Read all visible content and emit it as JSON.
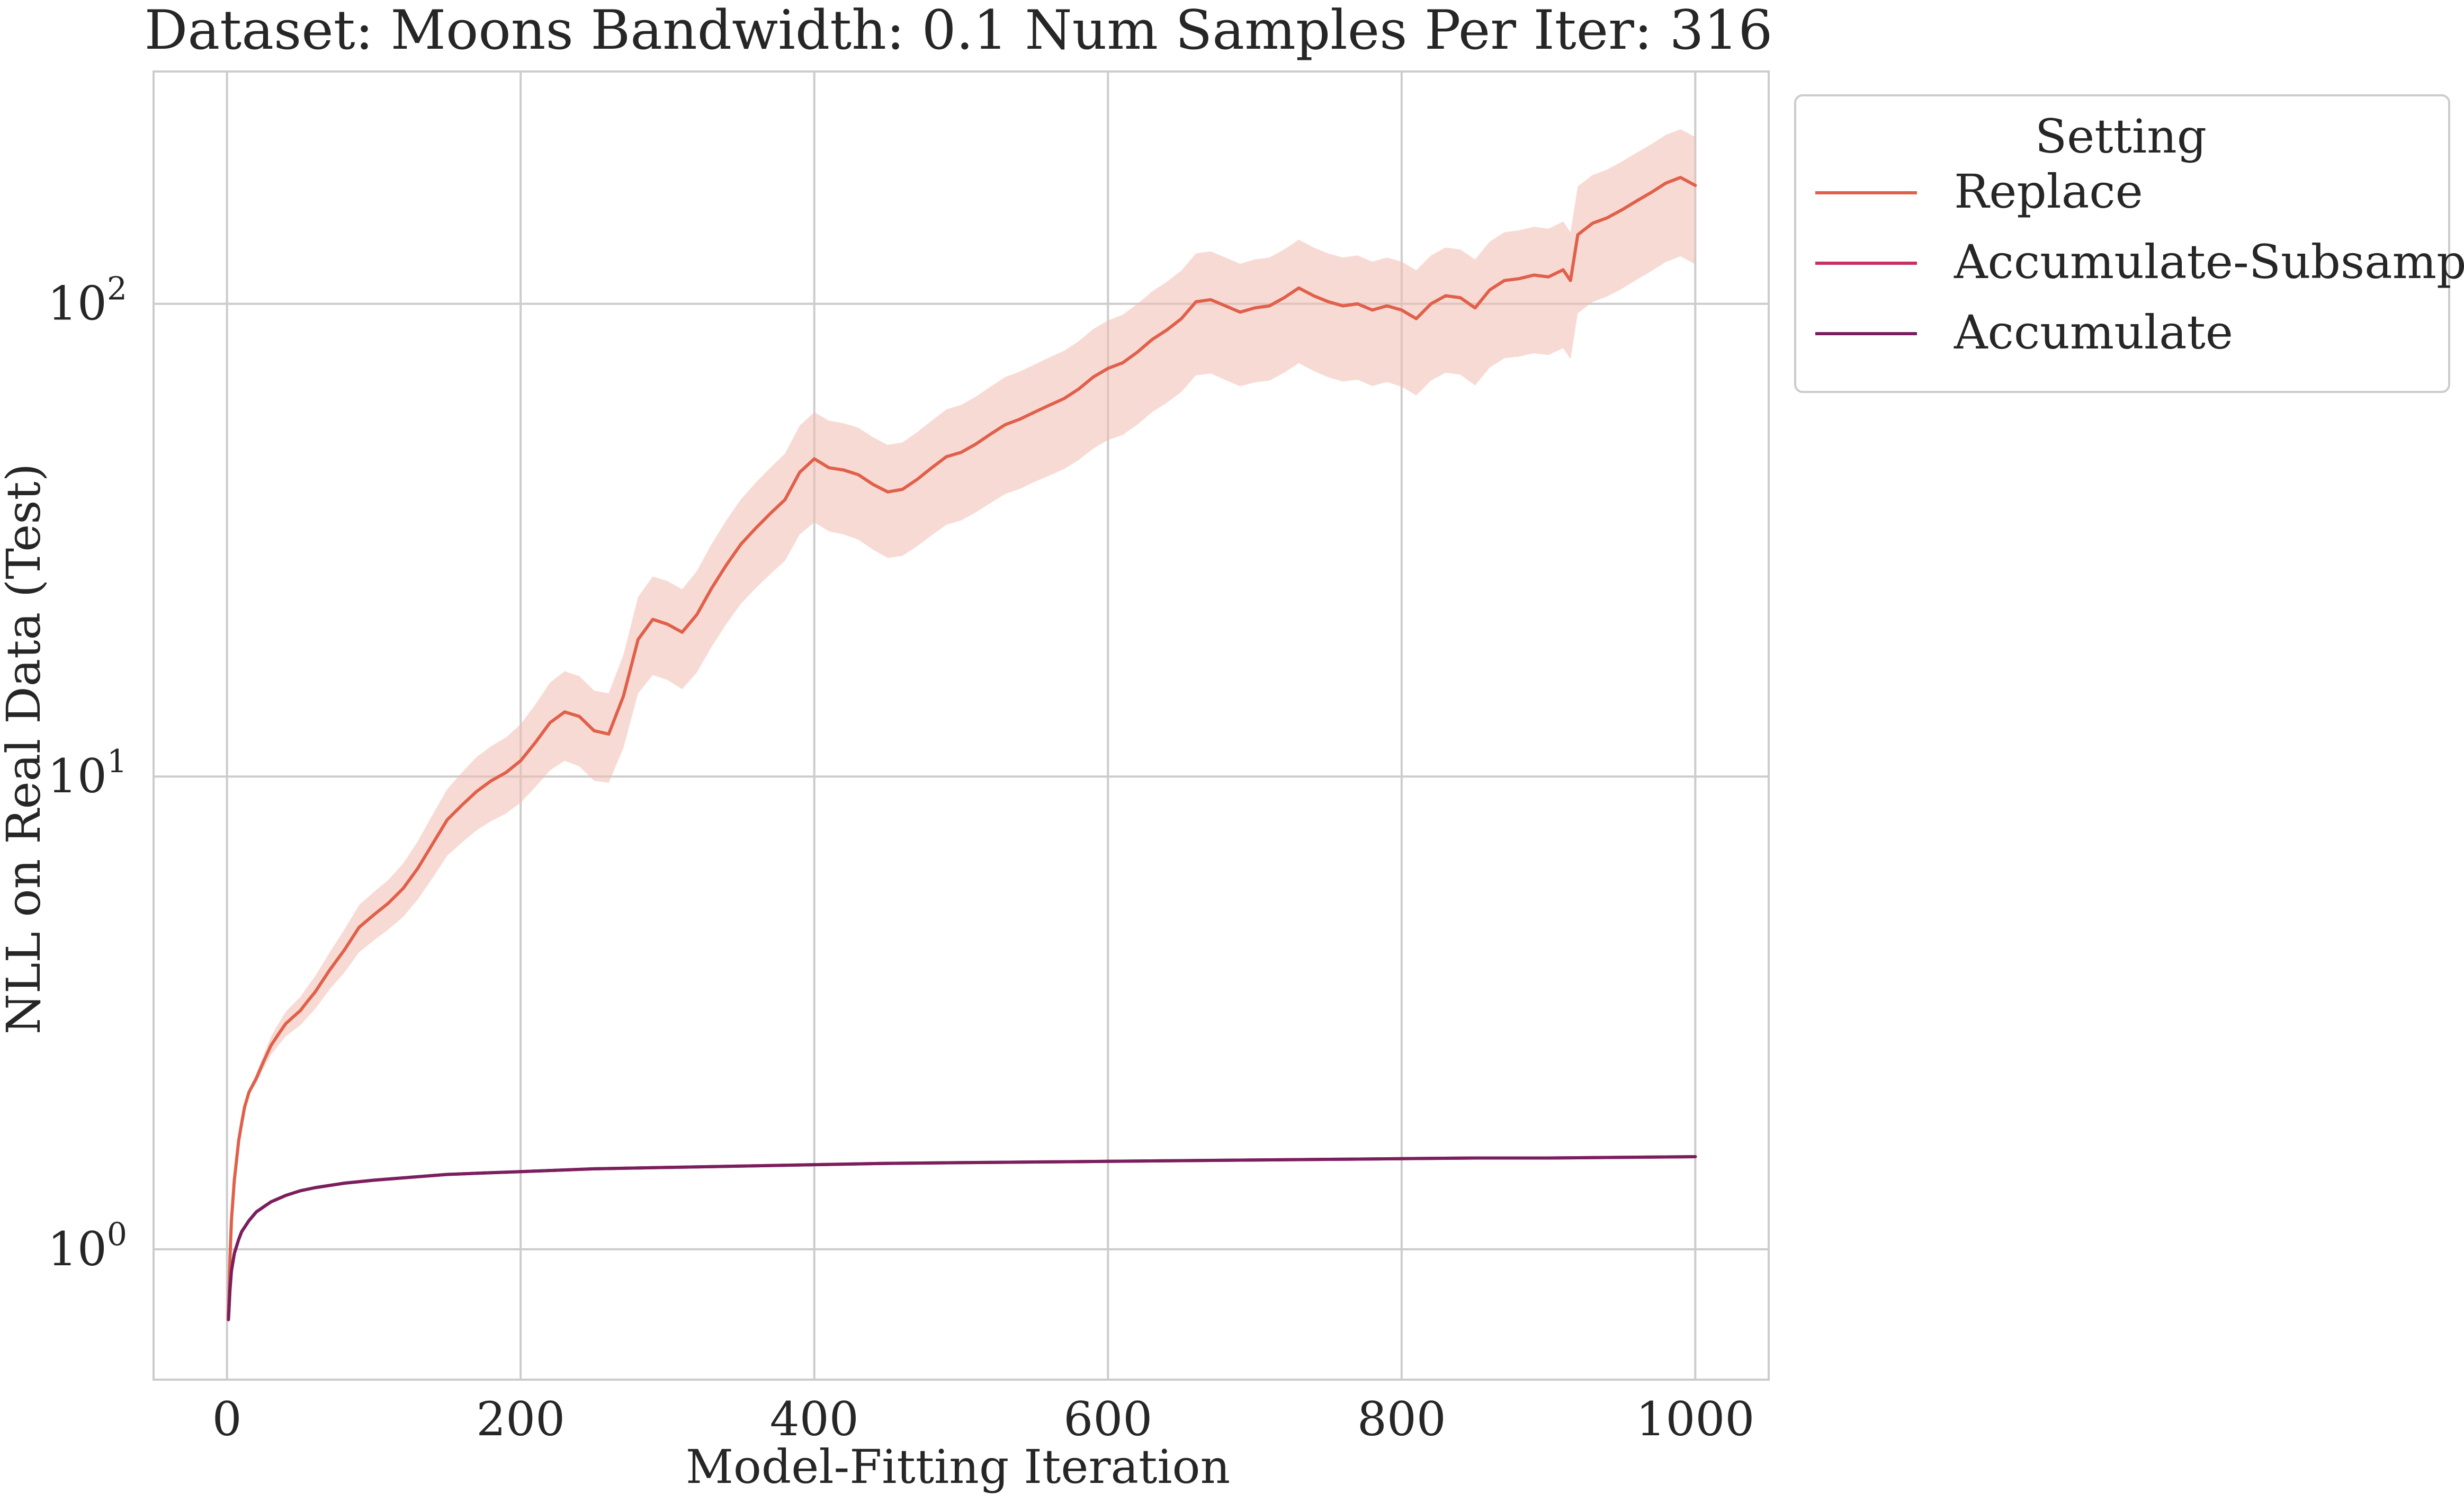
{
  "chart_data": {
    "type": "line",
    "title": "Dataset: Moons Bandwidth: 0.1 Num Samples Per Iter: 316",
    "xlabel": "Model-Fitting Iteration",
    "ylabel": "NLL on Real Data (Test)",
    "xlim": [
      -50,
      1050
    ],
    "ylim": [
      0.53,
      310
    ],
    "yscale": "log",
    "grid": true,
    "x_ticks": [
      0,
      200,
      400,
      600,
      800,
      1000
    ],
    "x_tick_labels": [
      "0",
      "200",
      "400",
      "600",
      "800",
      "1000"
    ],
    "y_ticks": [
      1,
      10,
      100
    ],
    "y_tick_labels": [
      {
        "base": "10",
        "exp": "0"
      },
      {
        "base": "10",
        "exp": "1"
      },
      {
        "base": "10",
        "exp": "2"
      }
    ],
    "legend": {
      "title": "Setting",
      "position": "outside-right-top"
    },
    "series": [
      {
        "name": "Replace",
        "color": "#e0604a",
        "band_color": "#f3bcb0",
        "x": [
          1,
          2,
          3,
          5,
          8,
          10,
          12,
          15,
          20,
          25,
          30,
          35,
          40,
          45,
          50,
          55,
          60,
          70,
          80,
          90,
          100,
          110,
          120,
          130,
          140,
          150,
          160,
          170,
          180,
          190,
          200,
          210,
          220,
          230,
          240,
          250,
          260,
          270,
          280,
          290,
          300,
          310,
          320,
          330,
          340,
          350,
          360,
          370,
          380,
          390,
          400,
          410,
          420,
          430,
          440,
          450,
          460,
          470,
          480,
          490,
          500,
          510,
          520,
          530,
          540,
          550,
          560,
          570,
          580,
          590,
          600,
          610,
          620,
          630,
          640,
          650,
          660,
          670,
          680,
          690,
          700,
          710,
          720,
          730,
          740,
          750,
          760,
          770,
          780,
          790,
          800,
          810,
          820,
          830,
          840,
          850,
          860,
          870,
          880,
          890,
          900,
          910,
          915,
          920,
          930,
          940,
          950,
          960,
          970,
          980,
          990,
          1000
        ],
        "y": [
          0.72,
          0.95,
          1.15,
          1.4,
          1.7,
          1.85,
          2.0,
          2.15,
          2.3,
          2.5,
          2.7,
          2.85,
          3.0,
          3.1,
          3.2,
          3.35,
          3.5,
          3.9,
          4.3,
          4.8,
          5.1,
          5.4,
          5.8,
          6.4,
          7.2,
          8.1,
          8.7,
          9.3,
          9.8,
          10.2,
          10.8,
          11.8,
          13.0,
          13.7,
          13.4,
          12.5,
          12.3,
          14.8,
          19.5,
          21.5,
          21.0,
          20.2,
          22.0,
          25.0,
          28.0,
          31.0,
          33.5,
          36.0,
          38.5,
          44.0,
          47.0,
          45.0,
          44.5,
          43.5,
          41.5,
          40.0,
          40.5,
          42.5,
          45.0,
          47.5,
          48.5,
          50.5,
          53.0,
          55.5,
          57.0,
          59.0,
          61.0,
          63.0,
          66.0,
          70.0,
          73.0,
          75.0,
          79.0,
          84.0,
          88.0,
          93.0,
          101.0,
          102.0,
          99.0,
          96.0,
          98.0,
          99.0,
          103.0,
          108.0,
          104.0,
          101.0,
          99.0,
          100.0,
          97.0,
          99.0,
          97.0,
          93.0,
          100.0,
          104.0,
          103.0,
          98.0,
          107.0,
          112.0,
          113.0,
          115.0,
          114.0,
          118.0,
          112.0,
          140.0,
          148.0,
          152.0,
          158.0,
          165.0,
          172.0,
          180.0,
          185.0,
          178.0
        ],
        "lower": [
          0.72,
          0.95,
          1.15,
          1.4,
          1.7,
          1.85,
          2.0,
          2.12,
          2.25,
          2.42,
          2.58,
          2.7,
          2.82,
          2.9,
          2.98,
          3.1,
          3.22,
          3.55,
          3.85,
          4.25,
          4.5,
          4.75,
          5.05,
          5.5,
          6.1,
          6.8,
          7.25,
          7.7,
          8.05,
          8.35,
          8.8,
          9.5,
          10.3,
          10.8,
          10.5,
          9.8,
          9.7,
          11.5,
          15.0,
          16.4,
          16.0,
          15.3,
          16.6,
          18.8,
          21.0,
          23.2,
          25.0,
          26.8,
          28.6,
          32.5,
          34.5,
          33.0,
          32.5,
          31.7,
          30.2,
          29.0,
          29.3,
          30.7,
          32.4,
          34.1,
          34.8,
          36.2,
          37.9,
          39.6,
          40.6,
          42.0,
          43.3,
          44.7,
          46.7,
          49.4,
          51.5,
          52.8,
          55.5,
          59.0,
          61.7,
          65.1,
          70.6,
          71.2,
          69.0,
          66.9,
          68.2,
          68.8,
          71.5,
          74.9,
          72.1,
          69.9,
          68.5,
          69.1,
          67.0,
          68.3,
          66.8,
          64.0,
          68.8,
          71.5,
          70.8,
          67.2,
          73.3,
          76.7,
          77.3,
          78.6,
          77.9,
          80.6,
          76.4,
          95.5,
          100.9,
          103.6,
          107.6,
          112.4,
          117.2,
          122.6,
          126.0,
          121.2
        ],
        "upper": [
          0.72,
          0.95,
          1.15,
          1.4,
          1.7,
          1.85,
          2.0,
          2.18,
          2.36,
          2.58,
          2.82,
          3.0,
          3.18,
          3.3,
          3.42,
          3.6,
          3.78,
          4.25,
          4.75,
          5.35,
          5.7,
          6.05,
          6.55,
          7.3,
          8.3,
          9.4,
          10.2,
          11.0,
          11.6,
          12.1,
          12.9,
          14.2,
          15.8,
          16.7,
          16.3,
          15.2,
          15.0,
          18.1,
          24.0,
          26.5,
          25.9,
          24.9,
          27.2,
          31.0,
          34.8,
          38.6,
          41.8,
          45.0,
          48.2,
          55.2,
          59.0,
          56.6,
          55.9,
          54.7,
          52.2,
          50.3,
          50.9,
          53.5,
          56.6,
          59.8,
          61.1,
          63.6,
          66.8,
          70.0,
          71.9,
          74.4,
          77.0,
          79.5,
          83.3,
          88.4,
          92.2,
          94.8,
          99.9,
          106.2,
          111.3,
          117.6,
          127.8,
          129.1,
          125.3,
          121.5,
          124.1,
          125.3,
          130.3,
          136.7,
          131.6,
          127.8,
          125.3,
          126.6,
          122.8,
          125.3,
          122.8,
          117.7,
          126.6,
          131.6,
          130.3,
          124.1,
          135.4,
          141.7,
          143.0,
          145.5,
          144.2,
          149.3,
          141.7,
          177.1,
          187.2,
          192.3,
          199.9,
          208.7,
          217.6,
          227.7,
          234.0,
          225.2
        ]
      },
      {
        "name": "Accumulate-Subsample",
        "color": "#c63063",
        "x": [
          1,
          2,
          3,
          5,
          8,
          10,
          15,
          20,
          25,
          30,
          40,
          50,
          60,
          80,
          100,
          125,
          150,
          175,
          200,
          250,
          300,
          350,
          400,
          450,
          500,
          550,
          600,
          650,
          700,
          750,
          800,
          850,
          900,
          950,
          1000
        ],
        "y": [
          0.71,
          0.82,
          0.9,
          0.98,
          1.05,
          1.09,
          1.15,
          1.2,
          1.23,
          1.26,
          1.3,
          1.33,
          1.35,
          1.38,
          1.4,
          1.42,
          1.44,
          1.45,
          1.46,
          1.48,
          1.49,
          1.5,
          1.51,
          1.52,
          1.525,
          1.53,
          1.535,
          1.54,
          1.545,
          1.55,
          1.555,
          1.56,
          1.56,
          1.565,
          1.57
        ]
      },
      {
        "name": "Accumulate",
        "color": "#7a1f5e",
        "x": [
          1,
          2,
          3,
          5,
          8,
          10,
          15,
          20,
          25,
          30,
          40,
          50,
          60,
          80,
          100,
          125,
          150,
          175,
          200,
          250,
          300,
          350,
          400,
          450,
          500,
          550,
          600,
          650,
          700,
          750,
          800,
          850,
          900,
          950,
          1000
        ],
        "y": [
          0.71,
          0.82,
          0.9,
          0.98,
          1.05,
          1.09,
          1.15,
          1.2,
          1.23,
          1.26,
          1.3,
          1.33,
          1.35,
          1.38,
          1.4,
          1.42,
          1.44,
          1.45,
          1.46,
          1.48,
          1.49,
          1.5,
          1.51,
          1.52,
          1.525,
          1.53,
          1.535,
          1.54,
          1.545,
          1.55,
          1.555,
          1.56,
          1.56,
          1.565,
          1.57
        ]
      }
    ]
  }
}
